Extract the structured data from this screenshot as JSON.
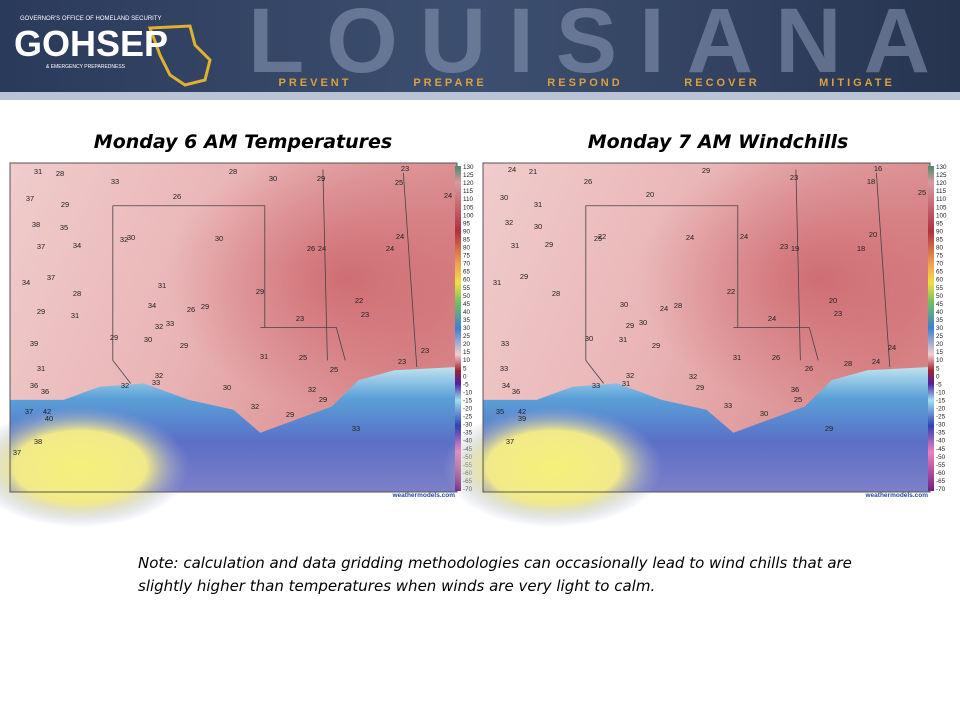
{
  "header": {
    "agency_line": "GOVERNOR'S OFFICE OF HOMELAND SECURITY",
    "logo": "GOHSEP",
    "agency_line2": "& EMERGENCY PREPAREDNESS",
    "banner": "LOUISIANA",
    "mottos": [
      "PREVENT",
      "PREPARE",
      "RESPOND",
      "RECOVER",
      "MITIGATE"
    ]
  },
  "panels": [
    {
      "title": "Monday 6 AM Temperatures",
      "map_labels": [
        31,
        28,
        33,
        28,
        30,
        29,
        23,
        25,
        24,
        26,
        37,
        29,
        35,
        38,
        37,
        34,
        32,
        30,
        30,
        26,
        24,
        24,
        24,
        37,
        34,
        28,
        31,
        29,
        29,
        31,
        34,
        26,
        29,
        22,
        23,
        23,
        32,
        33,
        29,
        30,
        29,
        39,
        31,
        31,
        25,
        23,
        23,
        32,
        30,
        25,
        36,
        36,
        32,
        33,
        32,
        29,
        37,
        42,
        40,
        32,
        29,
        33,
        38,
        37
      ],
      "colorbar": [
        130,
        125,
        120,
        115,
        110,
        105,
        100,
        95,
        90,
        85,
        80,
        75,
        70,
        65,
        60,
        55,
        50,
        45,
        40,
        35,
        30,
        25,
        20,
        15,
        10,
        5,
        0,
        -5,
        -10,
        -15,
        -20,
        -25,
        -30,
        -35,
        -40,
        -45,
        -50,
        -55,
        -60,
        -65,
        -70
      ],
      "credit": "weathermodels.com"
    },
    {
      "title": "Monday 7 AM Windchills",
      "map_labels": [
        24,
        21,
        29,
        16,
        18,
        26,
        20,
        23,
        25,
        30,
        31,
        30,
        32,
        22,
        25,
        24,
        24,
        20,
        18,
        23,
        19,
        31,
        29,
        29,
        31,
        28,
        22,
        30,
        24,
        28,
        20,
        23,
        24,
        29,
        30,
        30,
        31,
        29,
        33,
        24,
        31,
        26,
        24,
        28,
        33,
        32,
        32,
        26,
        34,
        36,
        33,
        31,
        29,
        30,
        36,
        25,
        33,
        35,
        42,
        39,
        29,
        37
      ],
      "colorbar": [
        130,
        125,
        120,
        115,
        110,
        105,
        100,
        95,
        90,
        85,
        80,
        75,
        70,
        65,
        60,
        55,
        50,
        45,
        40,
        35,
        30,
        25,
        20,
        15,
        10,
        5,
        0,
        -5,
        -10,
        -15,
        -20,
        -25,
        -30,
        -35,
        -40,
        -45,
        -50,
        -55,
        -60,
        -65,
        -70
      ],
      "credit": "weathermodels.com"
    }
  ],
  "note": [
    "Note: calculation and data gridding methodologies can occasionally lead to wind chills that are",
    "slightly higher than temperatures when winds are very light to calm."
  ]
}
